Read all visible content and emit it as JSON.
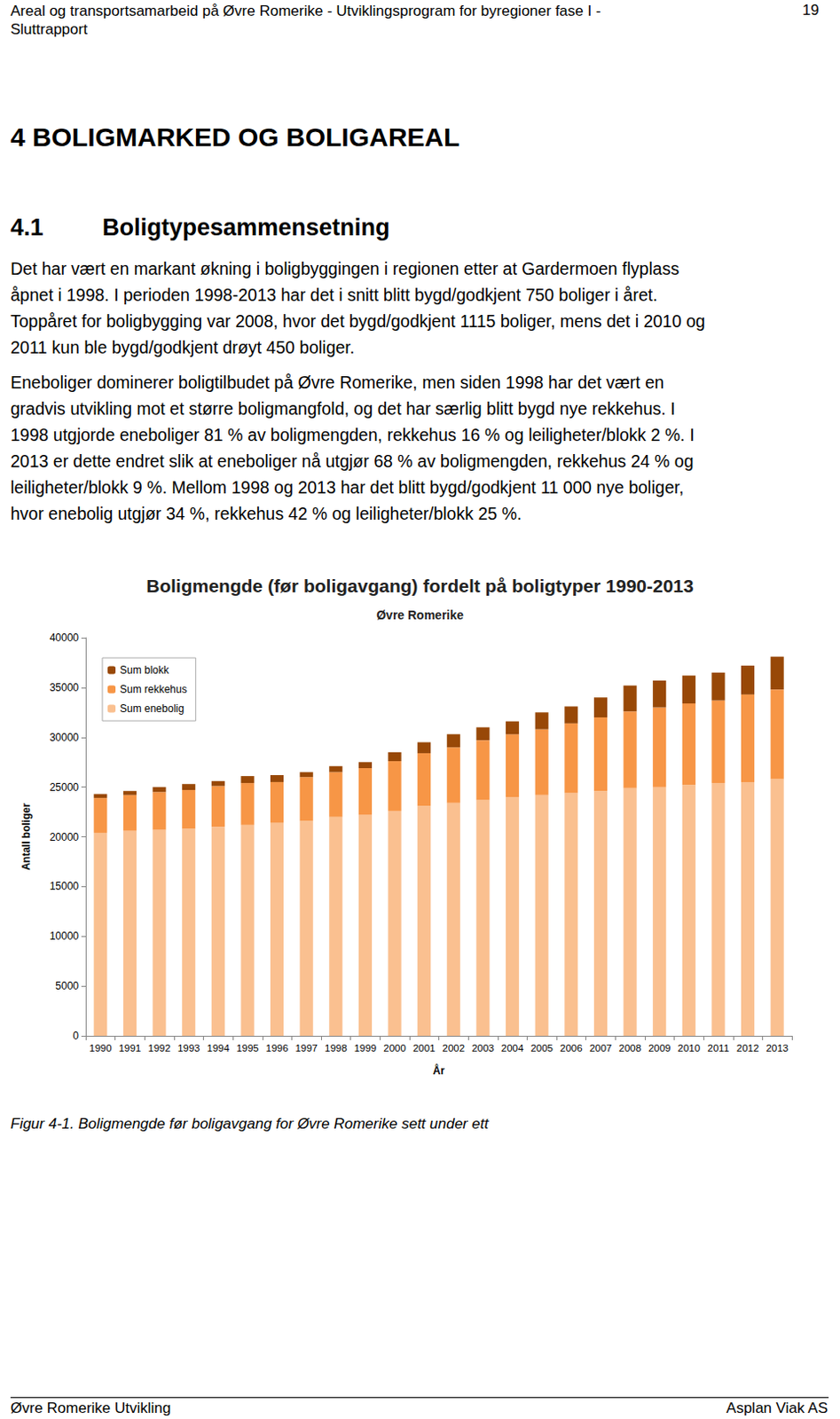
{
  "header": {
    "title_lines": [
      "Areal og transportsamarbeid på Øvre Romerike - Utviklingsprogram for byregioner fase I -",
      "Sluttrapport"
    ],
    "page": "19"
  },
  "heading": {
    "number": "4",
    "title": "BOLIGMARKED OG BOLIGAREAL"
  },
  "section": {
    "number": "4.1",
    "title": "Boligtypesammensetning",
    "paragraphs": [
      [
        "Det har vært en markant økning i boligbyggingen i regionen etter at Gardermoen flyplass",
        "åpnet i 1998. I perioden 1998-2013 har det i snitt blitt bygd/godkjent 750 boliger i året.",
        "Toppåret for boligbygging var 2008, hvor det bygd/godkjent 1115 boliger, mens det i 2010 og",
        "2011 kun ble bygd/godkjent drøyt 450 boliger."
      ],
      [
        "Eneboliger dominerer boligtilbudet på Øvre Romerike, men siden 1998 har det vært en",
        "gradvis utvikling mot et større boligmangfold, og det har særlig blitt bygd nye rekkehus. I",
        "1998 utgjorde eneboliger 81 % av boligmengden, rekkehus 16 % og leiligheter/blokk 2 %. I",
        "2013 er dette endret slik at eneboliger nå utgjør 68 % av boligmengden, rekkehus 24 % og",
        "leiligheter/blokk 9 %. Mellom 1998 og 2013 har det blitt bygd/godkjent 11 000 nye boliger,",
        "hvor enebolig utgjør 34 %, rekkehus 42 % og leiligheter/blokk 25 %."
      ]
    ]
  },
  "chart_data": {
    "type": "bar",
    "title": "Boligmengde (før boligavgang) fordelt på boligtyper 1990-2013",
    "subtitle": "Øvre Romerike",
    "x_label": "År",
    "y_label": "Antall boliger",
    "categories": [
      "1990",
      "1991",
      "1992",
      "1993",
      "1994",
      "1995",
      "1996",
      "1997",
      "1998",
      "1999",
      "2000",
      "2001",
      "2002",
      "2003",
      "2004",
      "2005",
      "2006",
      "2007",
      "2008",
      "2009",
      "2010",
      "2011",
      "2012",
      "2013"
    ],
    "series": [
      {
        "name": "Sum enebolig",
        "color": "#fac090",
        "values": [
          20400,
          20600,
          20700,
          20800,
          21000,
          21200,
          21400,
          21600,
          22000,
          22200,
          22600,
          23100,
          23400,
          23700,
          24000,
          24200,
          24400,
          24600,
          24900,
          25000,
          25200,
          25400,
          25500,
          25800
        ]
      },
      {
        "name": "Sum rekkehus",
        "color": "#f79646",
        "values": [
          3500,
          3600,
          3800,
          3900,
          4100,
          4200,
          4100,
          4400,
          4500,
          4700,
          5000,
          5300,
          5600,
          6000,
          6300,
          6600,
          7000,
          7400,
          7700,
          8000,
          8200,
          8300,
          8800,
          9000
        ]
      },
      {
        "name": "Sum blokk",
        "color": "#984807",
        "values": [
          400,
          400,
          500,
          600,
          500,
          700,
          700,
          500,
          600,
          600,
          900,
          1100,
          1300,
          1300,
          1300,
          1700,
          1700,
          2000,
          2600,
          2700,
          2800,
          2800,
          2900,
          3300
        ]
      }
    ],
    "stacked": true,
    "ylim": [
      0,
      40000
    ],
    "yticks": [
      0,
      5000,
      10000,
      15000,
      20000,
      25000,
      30000,
      35000,
      40000
    ],
    "grid": false,
    "legend": "top-left"
  },
  "caption": "Figur 4-1. Boligmengde før boligavgang for Øvre Romerike sett under ett",
  "footer": {
    "left": "Øvre Romerike Utvikling",
    "right": "Asplan Viak AS"
  }
}
